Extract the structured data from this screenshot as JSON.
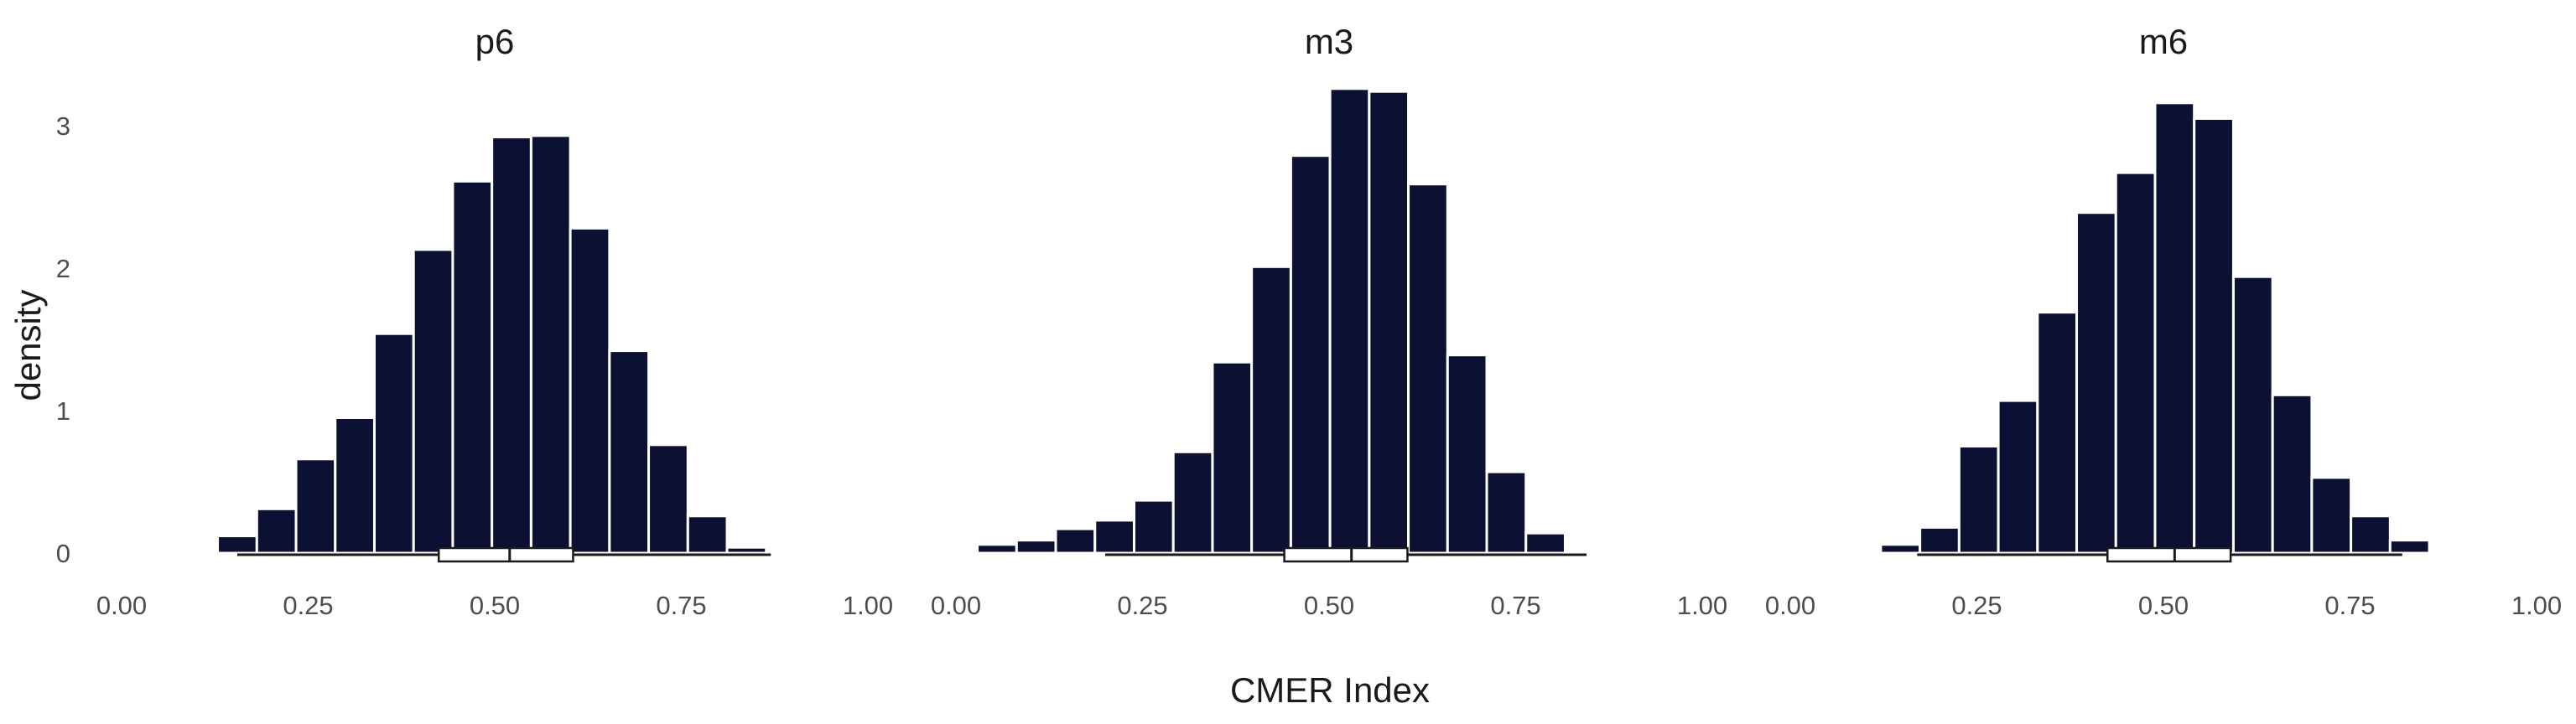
{
  "chart_data": {
    "type": "bar",
    "xlabel": "CMER Index",
    "ylabel": "density",
    "xlim": [
      0,
      1
    ],
    "ylim": [
      0,
      3.3
    ],
    "x_ticks": [
      "0.00",
      "0.25",
      "0.50",
      "0.75",
      "1.00"
    ],
    "y_ticks": [
      "0",
      "1",
      "2",
      "3"
    ],
    "grid": false,
    "bar_color": "#0c1033",
    "bin_width": 0.0525,
    "panels": [
      {
        "title": "p6",
        "bin_centers": [
          0.155,
          0.2075,
          0.26,
          0.3125,
          0.365,
          0.4175,
          0.47,
          0.5225,
          0.575,
          0.6275,
          0.68,
          0.7325,
          0.785,
          0.8375
        ],
        "density": [
          0.12,
          0.31,
          0.66,
          0.95,
          1.54,
          2.13,
          2.61,
          2.92,
          2.93,
          2.28,
          1.42,
          0.76,
          0.26,
          0.04
        ],
        "range_line": [
          0.155,
          0.87
        ],
        "box": {
          "q1": 0.425,
          "median": 0.52,
          "q3": 0.605
        }
      },
      {
        "title": "m3",
        "bin_centers": [
          0.055,
          0.1075,
          0.16,
          0.2125,
          0.265,
          0.3175,
          0.37,
          0.4225,
          0.475,
          0.5275,
          0.58,
          0.6325,
          0.685,
          0.7375,
          0.79
        ],
        "density": [
          0.06,
          0.09,
          0.17,
          0.23,
          0.37,
          0.71,
          1.34,
          2.01,
          2.79,
          3.26,
          3.24,
          2.59,
          1.39,
          0.57,
          0.14
        ],
        "range_line": [
          0.2,
          0.845
        ],
        "box": {
          "q1": 0.44,
          "median": 0.53,
          "q3": 0.605
        }
      },
      {
        "title": "m6",
        "bin_centers": [
          0.1475,
          0.2,
          0.2525,
          0.305,
          0.3575,
          0.41,
          0.4625,
          0.515,
          0.5675,
          0.62,
          0.6725,
          0.725,
          0.7775,
          0.83
        ],
        "density": [
          0.06,
          0.18,
          0.75,
          1.07,
          1.69,
          2.39,
          2.67,
          3.16,
          3.05,
          1.94,
          1.11,
          0.53,
          0.26,
          0.09
        ],
        "range_line": [
          0.17,
          0.82
        ],
        "box": {
          "q1": 0.425,
          "median": 0.515,
          "q3": 0.59
        }
      }
    ]
  }
}
